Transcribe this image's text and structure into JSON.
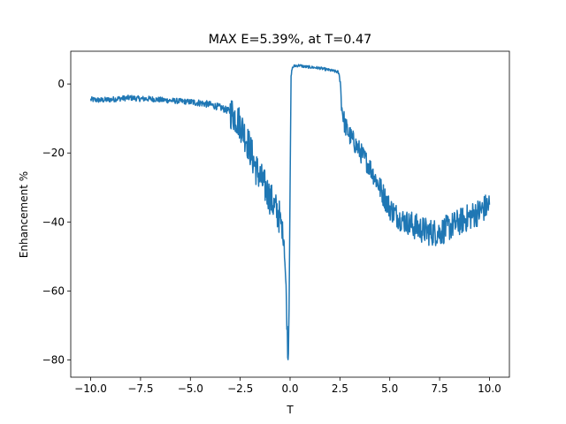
{
  "chart_data": {
    "type": "line",
    "title": "MAX E=5.39%, at T=0.47",
    "xlabel": "T",
    "ylabel": "Enhancement %",
    "xlim": [
      -11.0,
      11.0
    ],
    "ylim": [
      -85.0,
      9.5
    ],
    "xticks": [
      -10.0,
      -7.5,
      -5.0,
      -2.5,
      0.0,
      2.5,
      5.0,
      7.5,
      10.0
    ],
    "xtick_labels": [
      "−10.0",
      "−7.5",
      "−5.0",
      "−2.5",
      "0.0",
      "2.5",
      "5.0",
      "7.5",
      "10.0"
    ],
    "yticks": [
      0,
      -20,
      -40,
      -60,
      -80
    ],
    "ytick_labels": [
      "0",
      "−20",
      "−40",
      "−60",
      "−80"
    ],
    "grid": false,
    "line_color": "#1f77b4",
    "series": [
      {
        "x": [
          -10.0,
          -9.5,
          -9.0,
          -8.5,
          -8.0,
          -7.5,
          -7.0,
          -6.5,
          -6.0,
          -5.5,
          -5.0,
          -4.5,
          -4.0,
          -3.5,
          -3.0,
          -2.75,
          -2.5,
          -2.25,
          -2.0,
          -1.75,
          -1.5,
          -1.25,
          -1.0,
          -0.75,
          -0.5,
          -0.3,
          -0.2,
          -0.1,
          -0.05,
          0.0,
          0.05,
          0.1,
          0.2,
          0.3,
          0.47,
          0.75,
          1.0,
          1.5,
          2.0,
          2.4,
          2.5,
          2.6,
          2.75,
          3.0,
          3.5,
          4.0,
          4.5,
          5.0,
          5.5,
          6.0,
          6.5,
          7.0,
          7.5,
          8.0,
          8.5,
          9.0,
          9.5,
          10.0
        ],
        "y": [
          -4.5,
          -4.7,
          -4.5,
          -4.2,
          -4.0,
          -4.3,
          -4.3,
          -4.6,
          -4.8,
          -5.0,
          -5.2,
          -5.5,
          -6.0,
          -6.8,
          -8.0,
          -9.5,
          -11.5,
          -15.0,
          -19.0,
          -24.0,
          -27.0,
          -30.0,
          -33.0,
          -36.0,
          -39.0,
          -45.0,
          -60.0,
          -80.5,
          -65.0,
          -30.0,
          2.0,
          4.5,
          5.2,
          5.3,
          5.39,
          5.0,
          4.9,
          4.6,
          4.0,
          3.5,
          2.0,
          -7.0,
          -12.0,
          -15.0,
          -19.5,
          -24.0,
          -30.0,
          -36.0,
          -39.0,
          -40.5,
          -42.0,
          -43.0,
          -43.0,
          -41.5,
          -40.0,
          -38.5,
          -37.0,
          -35.0
        ]
      }
    ]
  }
}
